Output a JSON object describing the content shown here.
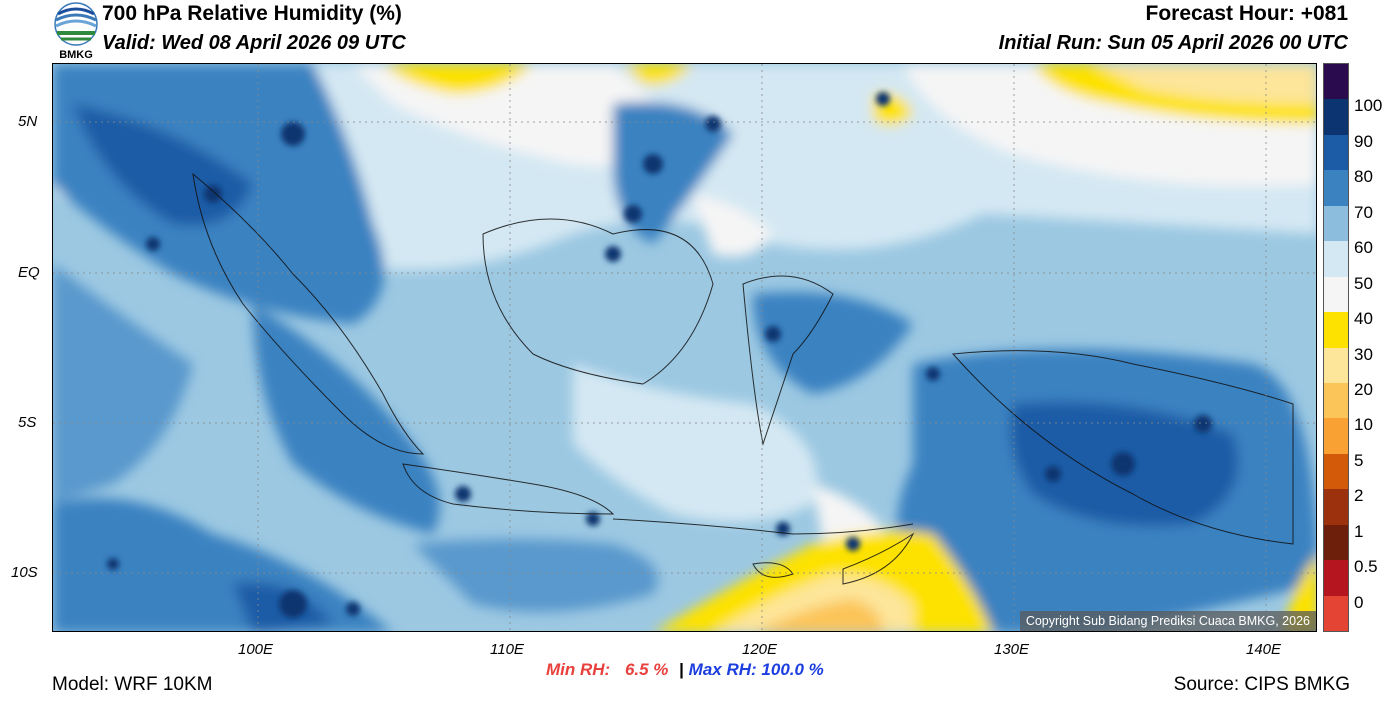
{
  "header": {
    "logo_text": "BMKG",
    "title": "700 hPa Relative Humidity (%)",
    "valid": "Valid: Wed 08 April 2026 09 UTC",
    "forecast_hour": "Forecast Hour: +081",
    "initial_run": "Initial Run: Sun 05 April 2026 00 UTC"
  },
  "map": {
    "lat_ticks": [
      "5N",
      "EQ",
      "5S",
      "10S"
    ],
    "lon_ticks": [
      "100E",
      "110E",
      "120E",
      "130E",
      "140E"
    ],
    "copyright": "Copyright Sub Bidang Prediksi Cuaca BMKG, 2026"
  },
  "colorbar": {
    "labels": [
      "100",
      "90",
      "80",
      "70",
      "60",
      "50",
      "40",
      "30",
      "20",
      "10",
      "5",
      "2",
      "1",
      "0.5",
      "0"
    ],
    "colors": [
      "#2a0b4e",
      "#0b3470",
      "#1c5ca6",
      "#3b82c1",
      "#8dbddd",
      "#d4e8f3",
      "#f5f5f5",
      "#fde200",
      "#fde59a",
      "#fcc55a",
      "#f9a133",
      "#d35a08",
      "#9c310d",
      "#6d1f0c",
      "#b5151e",
      "#e34434"
    ]
  },
  "stats": {
    "min_label": "Min RH:",
    "min_value": "6.5 %",
    "separator": "|",
    "max_label": "Max RH:",
    "max_value": "100.0 %",
    "min_color": "#e8413d",
    "max_color": "#1d3fe0"
  },
  "footer": {
    "model": "Model: WRF 10KM",
    "source": "Source: CIPS BMKG"
  }
}
